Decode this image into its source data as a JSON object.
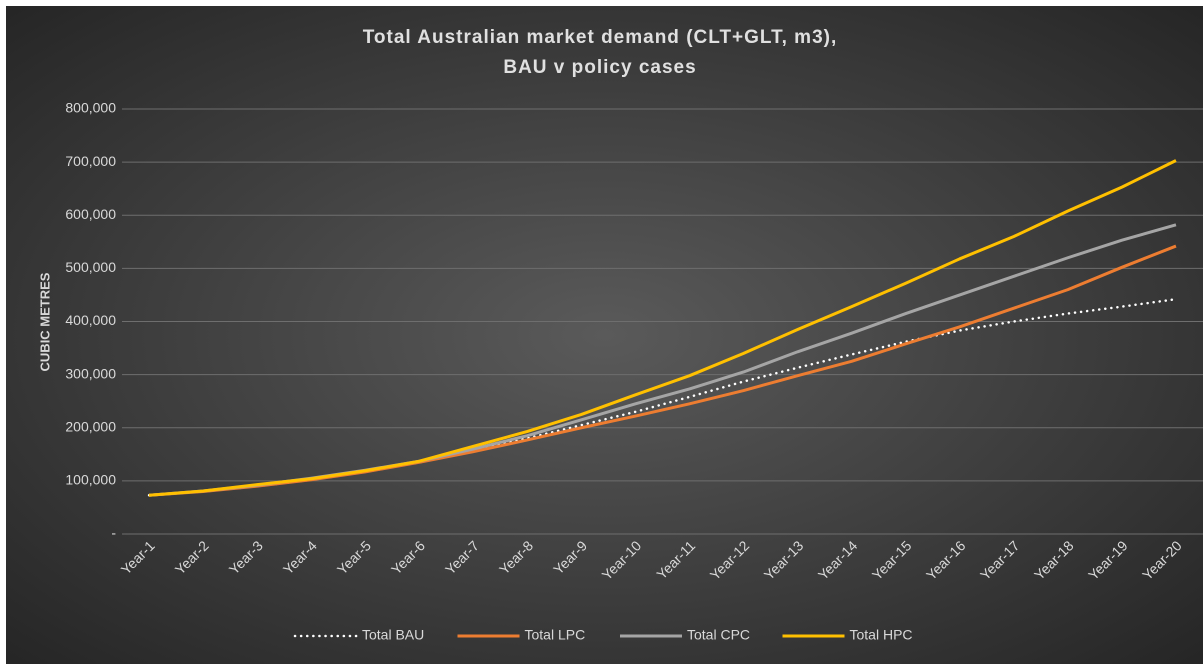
{
  "chart_data": {
    "type": "line",
    "title_lines": [
      "Total Australian market demand (CLT+GLT, m3),",
      "BAU v policy cases"
    ],
    "y_label": "CUBIC METRES",
    "categories": [
      "Year-1",
      "Year-2",
      "Year-3",
      "Year-4",
      "Year-5",
      "Year-6",
      "Year-7",
      "Year-8",
      "Year-9",
      "Year-10",
      "Year-11",
      "Year-12",
      "Year-13",
      "Year-14",
      "Year-15",
      "Year-16",
      "Year-17",
      "Year-18",
      "Year-19",
      "Year-20"
    ],
    "series": [
      {
        "name": "Total BAU",
        "color": "#ffffff",
        "style": "dotted",
        "values": [
          73000,
          80000,
          90000,
          102000,
          117000,
          135000,
          157000,
          180000,
          205000,
          230000,
          258000,
          287000,
          313000,
          338000,
          362000,
          383000,
          400000,
          415000,
          428000,
          442000
        ]
      },
      {
        "name": "Total LPC",
        "color": "#ed7d31",
        "style": "solid",
        "values": [
          73000,
          80000,
          90000,
          102000,
          117000,
          135000,
          155000,
          177000,
          200000,
          222000,
          245000,
          270000,
          298000,
          325000,
          358000,
          390000,
          425000,
          460000,
          502000,
          542000
        ]
      },
      {
        "name": "Total CPC",
        "color": "#a5a5a5",
        "style": "solid",
        "values": [
          73000,
          81000,
          92000,
          105000,
          120000,
          137000,
          160000,
          185000,
          215000,
          245000,
          273000,
          305000,
          343000,
          378000,
          415000,
          450000,
          485000,
          520000,
          553000,
          582000
        ]
      },
      {
        "name": "Total HPC",
        "color": "#ffc000",
        "style": "solid",
        "values": [
          73000,
          81000,
          93000,
          104000,
          119000,
          137000,
          165000,
          193000,
          225000,
          262000,
          298000,
          340000,
          385000,
          428000,
          472000,
          518000,
          560000,
          608000,
          653000,
          703000
        ]
      }
    ],
    "ylim": [
      0,
      800000
    ],
    "yticks": [
      {
        "value": 0,
        "label": "-"
      },
      {
        "value": 100000,
        "label": "100,000"
      },
      {
        "value": 200000,
        "label": "200,000"
      },
      {
        "value": 300000,
        "label": "300,000"
      },
      {
        "value": 400000,
        "label": "400,000"
      },
      {
        "value": 500000,
        "label": "500,000"
      },
      {
        "value": 600000,
        "label": "600,000"
      },
      {
        "value": 700000,
        "label": "700,000"
      },
      {
        "value": 800000,
        "label": "800,000"
      }
    ],
    "grid": true,
    "legend": "bottom"
  }
}
